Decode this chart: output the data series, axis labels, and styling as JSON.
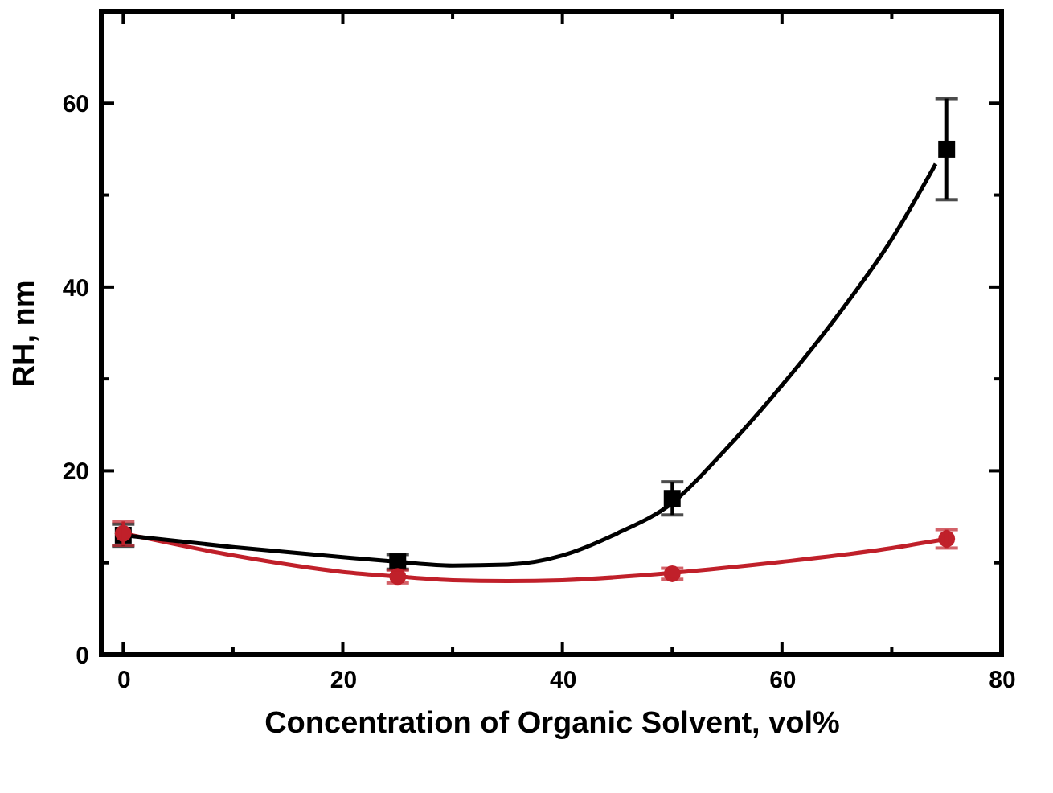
{
  "chart_data": {
    "type": "scatter",
    "xlabel": "Concentration of Organic Solvent, vol%",
    "ylabel": "RH, nm",
    "xlim": [
      -2,
      80
    ],
    "ylim": [
      0,
      70
    ],
    "xticks": [
      0,
      {
        "value": 10,
        "label": null
      },
      20,
      {
        "value": 30,
        "label": null
      },
      40,
      {
        "value": 50,
        "label": null
      },
      60,
      {
        "value": 70,
        "label": null
      },
      80
    ],
    "yticks": [
      0,
      {
        "value": 10,
        "label": null
      },
      20,
      {
        "value": 30,
        "label": null
      },
      40,
      {
        "value": 50,
        "label": null
      },
      60,
      {
        "value": 70,
        "label": null
      }
    ],
    "grid": false,
    "series": [
      {
        "color": "#000000",
        "marker": "square",
        "x": [
          0,
          25,
          50,
          75
        ],
        "values": [
          13,
          10.1,
          17,
          55
        ],
        "errors": [
          1.2,
          0.8,
          1.8,
          5.5
        ]
      },
      {
        "color": "#c0202a",
        "marker": "circle",
        "x": [
          0,
          25,
          50,
          75
        ],
        "values": [
          13.2,
          8.5,
          8.8,
          12.6
        ],
        "errors": [
          1.3,
          0.7,
          0.6,
          1
        ]
      },
      {
        "type": "line",
        "color": "#000000",
        "marker": "none",
        "line_style": "solid",
        "x": [
          0,
          10,
          20,
          25,
          30,
          35,
          40,
          45,
          50,
          55,
          60,
          65,
          70,
          74
        ],
        "values": [
          13,
          11.7,
          10.6,
          10.1,
          9.7,
          9.8,
          10.8,
          13.2,
          16.5,
          22.5,
          29.3,
          36.8,
          45.2,
          53.4
        ]
      },
      {
        "type": "line",
        "color": "#c0202a",
        "marker": "none",
        "line_style": "solid",
        "x": [
          0,
          10,
          20,
          25,
          30,
          35,
          40,
          50,
          60,
          70,
          75
        ],
        "values": [
          13.2,
          10.8,
          9,
          8.5,
          8.1,
          8,
          8.1,
          8.9,
          10.1,
          11.6,
          12.6
        ]
      }
    ]
  }
}
